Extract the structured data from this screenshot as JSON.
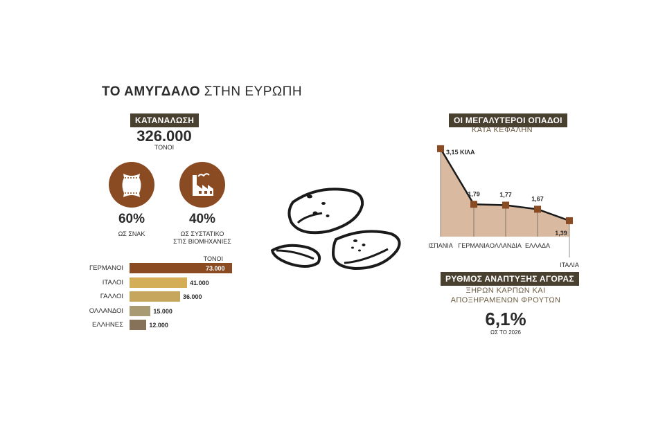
{
  "title": {
    "bold": "ΤΟ ΑΜΥΓΔΑΛΟ",
    "light": "ΣΤΗΝ ΕΥΡΩΠΗ"
  },
  "consumption": {
    "badge": "ΚΑΤΑΝΑΛΩΣΗ",
    "value": "326.000",
    "unit": "ΤΟΝΟΙ",
    "snack_pct": "60%",
    "snack_label": "ΩΣ ΣΝΑΚ",
    "industry_pct": "40%",
    "industry_label_1": "ΩΣ ΣΥΣΤΑΤΙΚΟ",
    "industry_label_2": "ΣΤΙΣ ΒΙΟΜΗΧΑΝΙΕΣ"
  },
  "fans": {
    "badge": "ΟΙ ΜΕΓΑΛΥΤΕΡΟΙ ΟΠΑΔΟΙ",
    "subtitle": "ΚΑΤΑ ΚΕΦΑΛΗΝ"
  },
  "growth": {
    "badge": "ΡΥΘΜΟΣ ΑΝΑΠΤΥΞΗΣ ΑΓΟΡΑΣ",
    "line1": "ΞΗΡΩΝ ΚΑΡΠΩΝ ΚΑΙ",
    "line2": "ΑΠΟΞΗΡΑΜΕΝΩΝ ΦΡΟΥΤΩΝ",
    "value": "6,1%",
    "note": "ΩΣ ΤΟ 2026"
  },
  "chart_data": [
    {
      "type": "bar",
      "orientation": "horizontal",
      "unit_label": "ΤΟΝΟΙ",
      "categories": [
        "ΓΕΡΜΑΝΟΙ",
        "ΙΤΑΛΟΙ",
        "ΓΑΛΛΟΙ",
        "ΟΛΛΑΝΔΟΙ",
        "ΕΛΛΗΝΕΣ"
      ],
      "values": [
        73000,
        41000,
        36000,
        15000,
        12000
      ],
      "value_labels": [
        "73.000",
        "41.000",
        "36.000",
        "15.000",
        "12.000"
      ],
      "colors": [
        "#8a4a22",
        "#d4ad57",
        "#c6a55c",
        "#a89a72",
        "#857259"
      ],
      "xlim": [
        0,
        73000
      ]
    },
    {
      "type": "area",
      "categories": [
        "ΙΣΠΑΝΙΑ",
        "ΓΕΡΜΑΝΙΑ",
        "ΟΛΛΑΝΔΙΑ",
        "ΕΛΛΑΔΑ",
        "ΙΤΑΛΙΑ"
      ],
      "values": [
        3.15,
        1.79,
        1.77,
        1.67,
        1.39
      ],
      "value_labels": [
        "3,15 ΚΙΛΑ",
        "1,79",
        "1,77",
        "1,67",
        "1,39"
      ],
      "fill_color": "#d9b9a0",
      "marker_color": "#8a4a22",
      "ylim": [
        1.0,
        3.3
      ]
    }
  ]
}
